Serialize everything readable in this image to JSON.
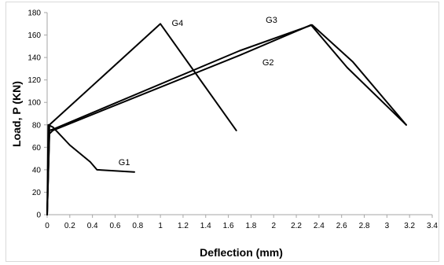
{
  "chart_data": {
    "type": "line",
    "xlabel": "Deflection (mm)",
    "ylabel": "Load, P (KN)",
    "xlim": [
      0,
      3.4
    ],
    "ylim": [
      0,
      180
    ],
    "x_ticks": [
      "0",
      "0.2",
      "0.4",
      "0.6",
      "0.8",
      "1",
      "1.2",
      "1.4",
      "1.6",
      "1.8",
      "2",
      "2.2",
      "2.4",
      "2.6",
      "2.8",
      "3",
      "3.2",
      "3.4"
    ],
    "y_ticks": [
      "0",
      "20",
      "40",
      "60",
      "80",
      "100",
      "120",
      "140",
      "160",
      "180"
    ],
    "grid": false,
    "line_color": "#000000",
    "series": [
      {
        "name": "G1",
        "points": [
          [
            0,
            0
          ],
          [
            0.01,
            80
          ],
          [
            0.05,
            78
          ],
          [
            0.2,
            62
          ],
          [
            0.38,
            47
          ],
          [
            0.44,
            40
          ],
          [
            0.77,
            38
          ]
        ],
        "label_at": [
          0.63,
          44
        ]
      },
      {
        "name": "G2",
        "points": [
          [
            0,
            0
          ],
          [
            0.02,
            72
          ],
          [
            0.05,
            75
          ],
          [
            1.7,
            142
          ],
          [
            2.33,
            169
          ],
          [
            2.65,
            131
          ],
          [
            3.17,
            80
          ]
        ],
        "label_at": [
          1.9,
          133
        ]
      },
      {
        "name": "G3",
        "points": [
          [
            0,
            0
          ],
          [
            0.02,
            75
          ],
          [
            0.05,
            76
          ],
          [
            1.7,
            146
          ],
          [
            2.34,
            169
          ],
          [
            2.7,
            136
          ],
          [
            3.17,
            80
          ]
        ],
        "label_at": [
          1.93,
          171
        ]
      },
      {
        "name": "G4",
        "points": [
          [
            0,
            0
          ],
          [
            0.02,
            80
          ],
          [
            1.0,
            170
          ],
          [
            1.67,
            75
          ]
        ],
        "label_at": [
          1.1,
          168
        ]
      }
    ]
  }
}
